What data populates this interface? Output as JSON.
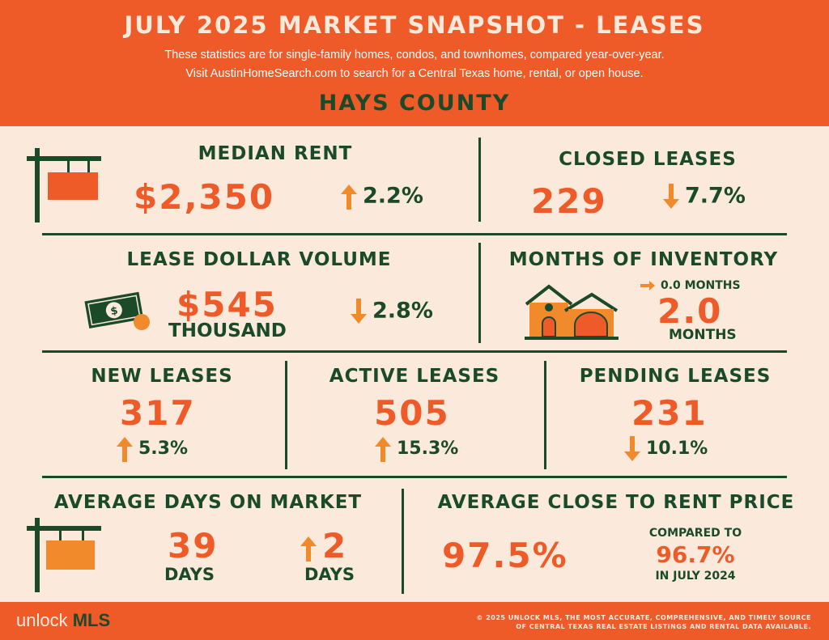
{
  "header": {
    "title": "JULY 2025 MARKET SNAPSHOT - LEASES",
    "subtitle_1": "These statistics are for single-family homes, condos, and townhomes, compared year-over-year.",
    "subtitle_2": "Visit AustinHomeSearch.com to search for a Central Texas home, rental, or open house.",
    "county": "HAYS COUNTY"
  },
  "median_rent": {
    "label": "MEDIAN RENT",
    "value": "$2,350",
    "change": "2.2%",
    "direction": "up"
  },
  "closed_leases": {
    "label": "CLOSED LEASES",
    "value": "229",
    "change": "7.7%",
    "direction": "down"
  },
  "lease_volume": {
    "label": "LEASE DOLLAR VOLUME",
    "value": "$545",
    "unit": "THOUSAND",
    "change": "2.8%",
    "direction": "down"
  },
  "months_inventory": {
    "label": "MONTHS OF INVENTORY",
    "change": "0.0 MONTHS",
    "direction": "flat",
    "value": "2.0",
    "unit": "MONTHS"
  },
  "new_leases": {
    "label": "NEW LEASES",
    "value": "317",
    "change": "5.3%",
    "direction": "up"
  },
  "active_leases": {
    "label": "ACTIVE LEASES",
    "value": "505",
    "change": "15.3%",
    "direction": "up"
  },
  "pending_leases": {
    "label": "PENDING LEASES",
    "value": "231",
    "change": "10.1%",
    "direction": "down"
  },
  "avg_dom": {
    "label": "AVERAGE DAYS ON MARKET",
    "value": "39",
    "unit": "DAYS",
    "change": "2",
    "change_unit": "DAYS",
    "direction": "up"
  },
  "close_to_rent": {
    "label": "AVERAGE CLOSE TO RENT PRICE",
    "value": "97.5%",
    "compared_label": "COMPARED TO",
    "compared_value": "96.7%",
    "compared_period": "IN JULY 2024"
  },
  "footer": {
    "brand_light": "unlock",
    "brand_bold": "MLS",
    "legal_1": "© 2025 UNLOCK MLS, THE MOST ACCURATE, COMPREHENSIVE, AND TIMELY SOURCE",
    "legal_2": "OF CENTRAL TEXAS REAL ESTATE LISTINGS AND RENTAL DATA AVAILABLE."
  },
  "colors": {
    "orange": "#ef5a29",
    "green": "#1b4a2b",
    "cream": "#fbeadc",
    "arrow": "#f08a2a"
  },
  "icons": [
    "sign-icon",
    "money-icon",
    "house-icon",
    "arrow-up-icon",
    "arrow-down-icon",
    "arrow-right-icon"
  ]
}
